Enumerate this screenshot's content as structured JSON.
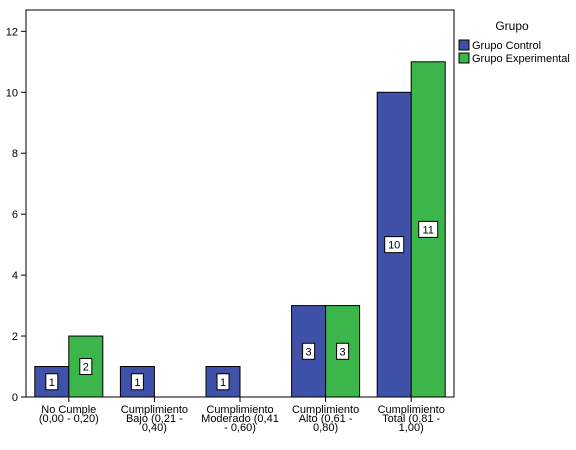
{
  "chart_data": {
    "type": "bar",
    "categories": [
      [
        "No Cumple",
        "(0,00 - 0,20)"
      ],
      [
        "Cumplimiento",
        "Bajo (0,21 -",
        "0,40)"
      ],
      [
        "Cumplimiento",
        "Moderado (0,41",
        "- 0,60)"
      ],
      [
        "Cumplimiento",
        "Alto (0,61 -",
        "0,80)"
      ],
      [
        "Cumplimiento",
        "Total (0,81 -",
        "1,00)"
      ]
    ],
    "series": [
      {
        "name": "Grupo Control",
        "color": "#3f51a8",
        "values": [
          1,
          1,
          1,
          3,
          10
        ]
      },
      {
        "name": "Grupo Experimental",
        "color": "#3cb54a",
        "values": [
          2,
          0,
          0,
          3,
          11
        ]
      }
    ],
    "ylim": [
      0,
      12.7
    ],
    "yticks": [
      0,
      2,
      4,
      6,
      8,
      10,
      12
    ],
    "legend": {
      "title": "Grupo",
      "position": "right"
    },
    "grid": false
  }
}
